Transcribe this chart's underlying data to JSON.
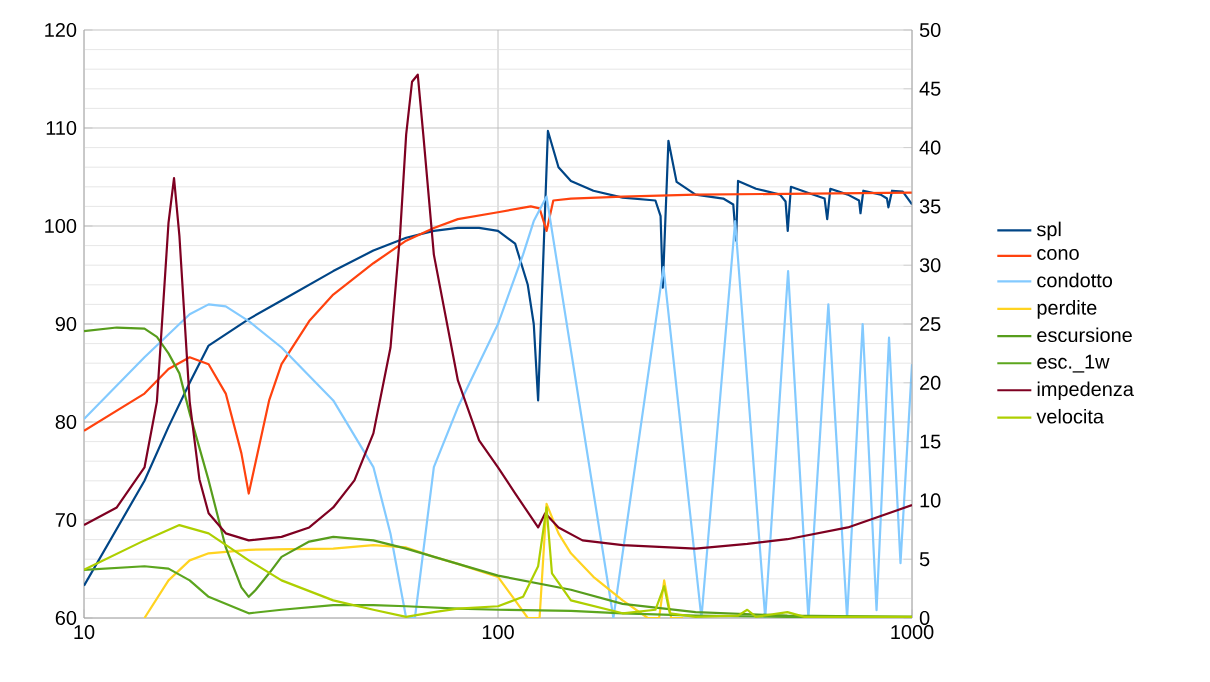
{
  "chart_data": {
    "type": "line",
    "log": "x",
    "grid": true,
    "legend": "right",
    "xlim": [
      10,
      1000
    ],
    "xticks": [
      10,
      100,
      1000
    ],
    "ylim": [
      60,
      120
    ],
    "yticks": [
      60,
      70,
      80,
      90,
      100,
      110,
      120
    ],
    "y2lim": [
      0,
      50
    ],
    "y2ticks": [
      0,
      5,
      10,
      15,
      20,
      25,
      30,
      35,
      40,
      45,
      50
    ],
    "series": [
      {
        "name": "spl",
        "color": "#004586",
        "x": [
          10,
          14,
          16,
          18,
          20,
          25,
          30,
          40,
          50,
          60,
          70,
          80,
          90,
          100,
          110,
          118,
          122,
          125,
          132,
          140,
          150,
          170,
          200,
          240,
          247,
          250,
          258,
          270,
          300,
          350,
          370,
          376,
          380,
          420,
          480,
          495,
          501,
          510,
          560,
          615,
          624,
          635,
          700,
          745,
          751,
          763,
          840,
          870,
          877,
          895,
          950,
          1000
        ],
        "values": [
          63.3,
          74,
          79.5,
          84,
          87.8,
          90.5,
          92.4,
          95.4,
          97.5,
          98.8,
          99.5,
          99.8,
          99.8,
          99.5,
          98.2,
          94,
          90,
          82.2,
          109.7,
          106,
          104.6,
          103.6,
          102.9,
          102.6,
          101,
          93.7,
          108.7,
          104.5,
          103.2,
          102.8,
          102.2,
          98.5,
          104.6,
          103.8,
          103.2,
          102.5,
          99.5,
          104,
          103.4,
          102.8,
          100.7,
          103.8,
          103.2,
          102.6,
          101.3,
          103.6,
          103.2,
          102.8,
          101.9,
          103.6,
          103.5,
          102.2
        ]
      },
      {
        "name": "cono",
        "color": "#ff420e",
        "x": [
          10,
          14,
          16,
          18,
          20,
          22,
          24,
          25,
          26,
          28,
          30,
          35,
          40,
          50,
          60,
          70,
          80,
          100,
          120,
          126,
          131,
          136,
          150,
          200,
          300,
          1000
        ],
        "values": [
          79.1,
          82.9,
          85.4,
          86.6,
          85.9,
          82.9,
          76.8,
          72.7,
          76,
          82.2,
          85.9,
          90.3,
          93,
          96.2,
          98.5,
          99.8,
          100.7,
          101.4,
          102,
          101.8,
          99.5,
          102.6,
          102.8,
          103,
          103.2,
          103.4
        ]
      },
      {
        "name": "condotto",
        "color": "#83caff",
        "x": [
          10,
          14,
          18,
          20,
          22,
          25,
          30,
          40,
          50,
          55,
          60,
          63,
          70,
          80,
          100,
          115,
          122,
          131,
          190,
          251,
          310,
          374,
          442,
          502,
          562,
          628,
          697,
          760,
          821,
          880,
          938,
          1000
        ],
        "values": [
          80.3,
          86.6,
          91,
          92,
          91.8,
          90.3,
          87.6,
          82.2,
          75.4,
          68.6,
          60,
          60,
          75.4,
          81.5,
          90,
          97.1,
          100.5,
          103,
          60,
          95.8,
          60,
          100.5,
          60,
          95.4,
          60,
          92,
          60,
          90,
          60.8,
          88.6,
          65.6,
          85.9
        ]
      },
      {
        "name": "perdite",
        "color": "#ffd320",
        "axis": "y2",
        "x": [
          14,
          16,
          18,
          20,
          25,
          40,
          50,
          60,
          70,
          80,
          100,
          110,
          118,
          126,
          131,
          140,
          150,
          170,
          200,
          230,
          245,
          252,
          262,
          280
        ],
        "values": [
          0,
          3.2,
          4.9,
          5.5,
          5.8,
          5.9,
          6.2,
          6,
          5.2,
          4.6,
          3.5,
          1.5,
          0,
          0,
          9.7,
          7.2,
          5.5,
          3.5,
          1.5,
          0,
          0,
          3.2,
          0,
          0
        ]
      },
      {
        "name": "escursione",
        "color": "#579d1c",
        "axis": "y2",
        "x": [
          10,
          12,
          14,
          15,
          16,
          17,
          18,
          20,
          22,
          24,
          25,
          26,
          28,
          30,
          35,
          40,
          50,
          60,
          80,
          100,
          150,
          200,
          300,
          500,
          1000
        ],
        "values": [
          24.4,
          24.7,
          24.6,
          23.9,
          22.5,
          20.8,
          17.4,
          11.7,
          6,
          2.6,
          1.8,
          2.4,
          3.8,
          5.2,
          6.5,
          6.9,
          6.6,
          5.9,
          4.6,
          3.6,
          2.4,
          1.2,
          0.5,
          0.2,
          0.1
        ]
      },
      {
        "name": "esc._1w",
        "color": "#5ca61e",
        "axis": "y2",
        "x": [
          10,
          14,
          16,
          18,
          20,
          25,
          30,
          40,
          50,
          60,
          80,
          100,
          150,
          200,
          300,
          500,
          1000
        ],
        "values": [
          4.1,
          4.4,
          4.2,
          3.2,
          1.8,
          0.4,
          0.7,
          1.1,
          1.1,
          1,
          0.8,
          0.7,
          0.6,
          0.4,
          0.2,
          0.1,
          0.1
        ]
      },
      {
        "name": "impedenza",
        "color": "#7e0021",
        "axis": "y2",
        "x": [
          10,
          12,
          14,
          15,
          16,
          16.5,
          17,
          18,
          19,
          20,
          22,
          25,
          30,
          35,
          40,
          45,
          50,
          55,
          58,
          60,
          62,
          64,
          66,
          70,
          80,
          90,
          100,
          110,
          125,
          130,
          140,
          160,
          200,
          300,
          400,
          500,
          700,
          1000
        ],
        "values": [
          7.9,
          9.4,
          12.8,
          18.4,
          33.6,
          37.4,
          32.5,
          18.4,
          11.8,
          8.9,
          7.2,
          6.6,
          6.9,
          7.7,
          9.4,
          11.7,
          15.7,
          23,
          32.6,
          41.1,
          45.6,
          46.2,
          41.1,
          30.9,
          20.2,
          15.1,
          12.8,
          10.6,
          7.7,
          8.9,
          7.7,
          6.6,
          6.2,
          5.9,
          6.3,
          6.7,
          7.7,
          9.6
        ]
      },
      {
        "name": "velocita",
        "color": "#aecf00",
        "axis": "y2",
        "x": [
          10,
          14,
          17,
          20,
          25,
          30,
          40,
          50,
          60,
          70,
          80,
          100,
          115,
          125,
          131,
          135,
          150,
          200,
          240,
          252,
          260,
          300,
          380,
          400,
          420,
          500,
          550,
          1000
        ],
        "values": [
          4.1,
          6.6,
          7.9,
          7.2,
          4.9,
          3.2,
          1.5,
          0.7,
          0.1,
          0.5,
          0.8,
          1,
          1.8,
          4.4,
          9.4,
          3.8,
          1.5,
          0.4,
          0.7,
          2.7,
          0.4,
          0.1,
          0.2,
          0.7,
          0.1,
          0.5,
          0.1,
          0.1
        ]
      }
    ]
  }
}
